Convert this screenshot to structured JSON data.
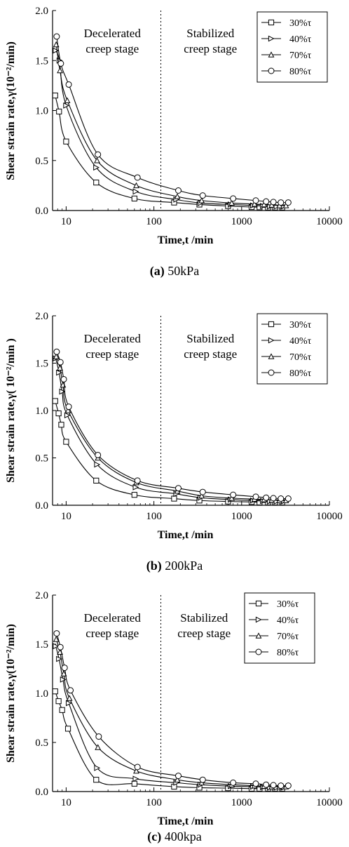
{
  "figure": {
    "panels": [
      {
        "id": "a",
        "caption_letter": "(a)",
        "caption_text": "50kPa",
        "xlabel": "Time,t /min",
        "ylabel": "Shear strain rate,γ(10⁻²/min)",
        "left_stage": [
          "Decelerated",
          "creep stage"
        ],
        "right_stage": [
          "Stabilized",
          "creep stage"
        ]
      },
      {
        "id": "b",
        "caption_letter": "(b)",
        "caption_text": "200kPa",
        "xlabel": "Time,t /min",
        "ylabel": "Shear strain rate,γ( 10⁻²/min )",
        "left_stage": [
          "Decelerated",
          "creep stage"
        ],
        "right_stage": [
          "Stabilized",
          "creep stage"
        ]
      },
      {
        "id": "c",
        "caption_letter": "(c)",
        "caption_text": "400kpa",
        "xlabel": "Time,t /min",
        "ylabel": "Shear strain rate,γ(10⁻²/min)",
        "left_stage": [
          "Decelerated",
          "creep stage"
        ],
        "right_stage": [
          "Stabilized",
          "creep stage"
        ]
      }
    ]
  },
  "chart_data": [
    {
      "type": "line",
      "xscale": "log",
      "xlim": [
        7,
        10000
      ],
      "ylim": [
        0,
        2.0
      ],
      "xticks": [
        "10",
        "100",
        "1000",
        "10000"
      ],
      "yticks": [
        "0.0",
        "0.5",
        "1.0",
        "1.5",
        "2.0"
      ],
      "divider_x": 120,
      "legend_position": "top-right",
      "series": [
        {
          "name": "30%τ",
          "marker": "square",
          "x": [
            7.5,
            8.3,
            10,
            22,
            60,
            170,
            330,
            700,
            1300,
            1600,
            2000,
            2400,
            2900
          ],
          "y": [
            1.15,
            0.99,
            0.69,
            0.28,
            0.12,
            0.08,
            0.06,
            0.045,
            0.035,
            0.033,
            0.03,
            0.03,
            0.03
          ]
        },
        {
          "name": "40%τ",
          "marker": "triangle-right",
          "x": [
            7.6,
            8.4,
            10,
            22,
            62,
            180,
            340,
            750,
            1350,
            1750,
            2100,
            2500,
            3000
          ],
          "y": [
            1.6,
            1.5,
            1.05,
            0.43,
            0.19,
            0.11,
            0.075,
            0.06,
            0.05,
            0.045,
            0.04,
            0.04,
            0.04
          ]
        },
        {
          "name": "70%τ",
          "marker": "triangle-up",
          "x": [
            7.7,
            8.5,
            10.3,
            22.5,
            63,
            185,
            350,
            770,
            1400,
            1800,
            2200,
            2700,
            3200
          ],
          "y": [
            1.66,
            1.4,
            1.1,
            0.5,
            0.25,
            0.14,
            0.1,
            0.075,
            0.065,
            0.06,
            0.055,
            0.05,
            0.05
          ]
        },
        {
          "name": "80%τ",
          "marker": "circle",
          "x": [
            7.8,
            8.7,
            10.7,
            23,
            65,
            190,
            360,
            800,
            1450,
            1900,
            2300,
            2800,
            3400
          ],
          "y": [
            1.74,
            1.47,
            1.26,
            0.56,
            0.33,
            0.2,
            0.15,
            0.12,
            0.1,
            0.09,
            0.085,
            0.08,
            0.08
          ]
        }
      ]
    },
    {
      "type": "line",
      "xscale": "log",
      "xlim": [
        7,
        10000
      ],
      "ylim": [
        0,
        2.0
      ],
      "xticks": [
        "10",
        "100",
        "1000",
        "10000"
      ],
      "yticks": [
        "0.0",
        "0.5",
        "1.0",
        "1.5",
        "2.0"
      ],
      "divider_x": 120,
      "legend_position": "top-right",
      "series": [
        {
          "name": "30%τ",
          "marker": "square",
          "x": [
            7.5,
            8.2,
            8.8,
            10,
            22,
            60,
            170,
            330,
            700,
            1300,
            1600,
            2000,
            2400,
            2900
          ],
          "y": [
            1.1,
            0.97,
            0.85,
            0.67,
            0.26,
            0.11,
            0.07,
            0.05,
            0.04,
            0.035,
            0.03,
            0.03,
            0.03,
            0.03
          ]
        },
        {
          "name": "40%τ",
          "marker": "triangle-right",
          "x": [
            7.6,
            8.3,
            9,
            10.3,
            22.5,
            62,
            180,
            340,
            750,
            1350,
            1750,
            2100,
            2500,
            3000
          ],
          "y": [
            1.55,
            1.4,
            1.2,
            0.95,
            0.43,
            0.19,
            0.12,
            0.08,
            0.06,
            0.05,
            0.045,
            0.04,
            0.04,
            0.04
          ]
        },
        {
          "name": "70%τ",
          "marker": "triangle-up",
          "x": [
            7.7,
            8.5,
            9.2,
            10.5,
            23,
            63,
            185,
            350,
            770,
            1400,
            1800,
            2200,
            2700,
            3200
          ],
          "y": [
            1.57,
            1.45,
            1.27,
            1.0,
            0.5,
            0.24,
            0.15,
            0.1,
            0.075,
            0.065,
            0.06,
            0.055,
            0.05,
            0.05
          ]
        },
        {
          "name": "80%τ",
          "marker": "circle",
          "x": [
            7.8,
            8.6,
            9.4,
            10.7,
            23,
            65,
            190,
            360,
            800,
            1450,
            1900,
            2300,
            2800,
            3400
          ],
          "y": [
            1.62,
            1.51,
            1.33,
            1.04,
            0.53,
            0.26,
            0.18,
            0.14,
            0.11,
            0.09,
            0.08,
            0.075,
            0.07,
            0.07
          ]
        }
      ]
    },
    {
      "type": "line",
      "xscale": "log",
      "xlim": [
        7,
        10000
      ],
      "ylim": [
        0,
        2.0
      ],
      "xticks": [
        "10",
        "100",
        "1000",
        "10000"
      ],
      "yticks": [
        "0.0",
        "0.5",
        "1.0",
        "1.5",
        "2.0"
      ],
      "divider_x": 120,
      "legend_position": "top-right",
      "series": [
        {
          "name": "30%τ",
          "marker": "square",
          "x": [
            7.5,
            8.2,
            9,
            10.5,
            22,
            60,
            170,
            330,
            700,
            1300,
            1600,
            2000,
            2400,
            2900
          ],
          "y": [
            1.02,
            0.92,
            0.83,
            0.64,
            0.12,
            0.08,
            0.05,
            0.04,
            0.035,
            0.03,
            0.03,
            0.03,
            0.03,
            0.03
          ]
        },
        {
          "name": "40%τ",
          "marker": "triangle-right",
          "x": [
            7.6,
            8.3,
            9.2,
            10.7,
            22.5,
            62,
            180,
            340,
            750,
            1350,
            1750,
            2100,
            2500,
            3000
          ],
          "y": [
            1.48,
            1.35,
            1.14,
            0.9,
            0.24,
            0.13,
            0.09,
            0.07,
            0.055,
            0.05,
            0.045,
            0.04,
            0.04,
            0.04
          ]
        },
        {
          "name": "70%τ",
          "marker": "triangle-up",
          "x": [
            7.7,
            8.5,
            9.4,
            10.9,
            23,
            63,
            185,
            350,
            770,
            1400,
            1800,
            2200,
            2700,
            3200
          ],
          "y": [
            1.55,
            1.42,
            1.2,
            0.95,
            0.45,
            0.21,
            0.12,
            0.09,
            0.07,
            0.06,
            0.055,
            0.05,
            0.05,
            0.05
          ]
        },
        {
          "name": "80%τ",
          "marker": "circle",
          "x": [
            7.8,
            8.6,
            9.6,
            11.2,
            23.5,
            65,
            190,
            360,
            800,
            1450,
            1900,
            2300,
            2800,
            3400
          ],
          "y": [
            1.61,
            1.47,
            1.26,
            1.03,
            0.56,
            0.25,
            0.16,
            0.12,
            0.09,
            0.08,
            0.07,
            0.065,
            0.06,
            0.06
          ]
        }
      ]
    }
  ]
}
